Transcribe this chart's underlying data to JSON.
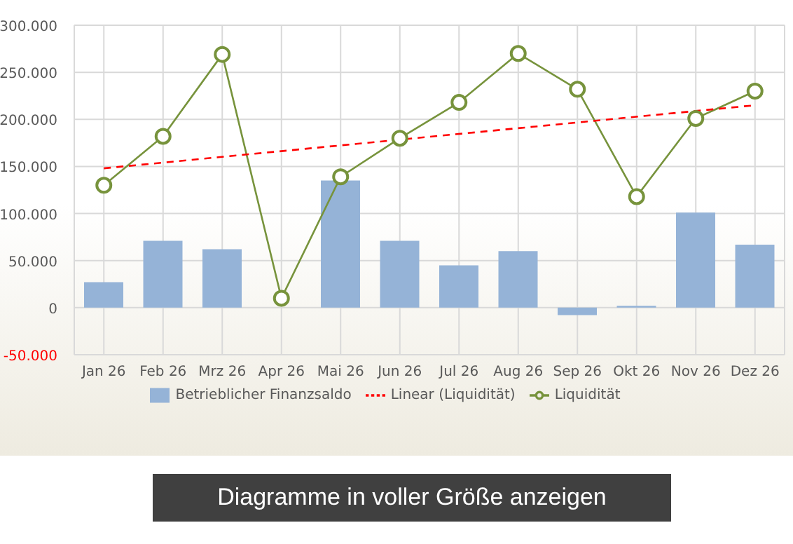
{
  "chart_data": {
    "type": "bar",
    "categories": [
      "Jan 26",
      "Feb 26",
      "Mrz 26",
      "Apr 26",
      "Mai 26",
      "Jun 26",
      "Jul 26",
      "Aug 26",
      "Sep 26",
      "Okt 26",
      "Nov 26",
      "Dez 26"
    ],
    "series": [
      {
        "name": "Betrieblicher Finanzsaldo",
        "color": "#95b3d7",
        "values": [
          27000,
          71000,
          62000,
          0,
          135000,
          71000,
          45000,
          60000,
          -8000,
          2000,
          101000,
          67000
        ]
      },
      {
        "name": "Liquidität",
        "type": "line",
        "color": "#77933c",
        "marker": "circle",
        "values": [
          130000,
          182000,
          269000,
          10000,
          139000,
          180000,
          218000,
          270000,
          232000,
          118000,
          201000,
          230000
        ]
      },
      {
        "name": "Linear (Liquidität)",
        "type": "line",
        "color": "#ff0000",
        "line_style": "dashed",
        "marker": "none",
        "x": [
          "Jan 26",
          "Dez 26"
        ],
        "values": [
          148000,
          215000
        ]
      }
    ],
    "ylim": [
      -50000,
      300000
    ],
    "yticks": [
      {
        "value": -50000,
        "label": "-50.000"
      },
      {
        "value": 0,
        "label": "0"
      },
      {
        "value": 50000,
        "label": "50.000"
      },
      {
        "value": 100000,
        "label": "100.000"
      },
      {
        "value": 150000,
        "label": "150.000"
      },
      {
        "value": 200000,
        "label": "200.000"
      },
      {
        "value": 250000,
        "label": "250.000"
      },
      {
        "value": 300000,
        "label": "300.000"
      }
    ],
    "grid": true,
    "legend": "bottom",
    "annotations": [
      "Diagramme in voller Größe anzeigen"
    ]
  }
}
